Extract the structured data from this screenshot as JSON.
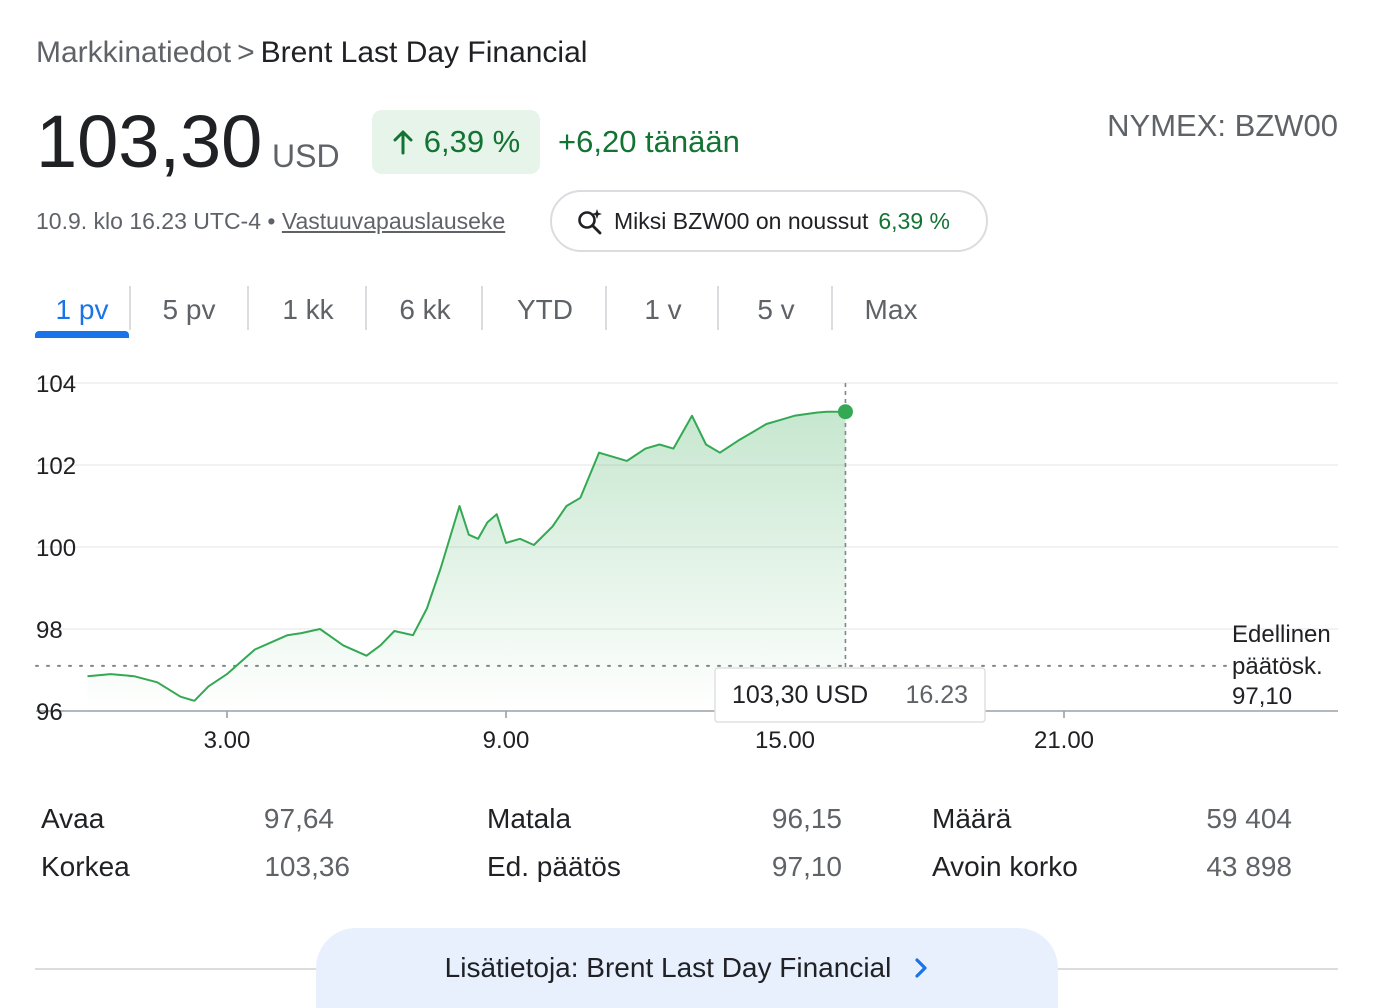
{
  "breadcrumb": {
    "root": "Markkinatiedot",
    "separator": ">",
    "current": "Brent Last Day Financial"
  },
  "quote": {
    "price": "103,30",
    "currency": "USD",
    "change_percent": "6,39 %",
    "change_abs": "+6,20 tänään",
    "exchange": "NYMEX: BZW00",
    "timestamp": "10.9. klo 16.23 UTC-4",
    "bullet": "•",
    "disclaimer": "Vastuuvapauslauseke",
    "positive_color": "#137333"
  },
  "why_button": {
    "label": "Miksi BZW00 on noussut",
    "pct": "6,39 %",
    "icon": "sparkle-search-icon"
  },
  "tabs": [
    {
      "label": "1 pv",
      "active": true
    },
    {
      "label": "5 pv"
    },
    {
      "label": "1 kk"
    },
    {
      "label": "6 kk"
    },
    {
      "label": "YTD"
    },
    {
      "label": "1 v"
    },
    {
      "label": "5 v"
    },
    {
      "label": "Max"
    }
  ],
  "chart_data": {
    "type": "area",
    "y_ticks": [
      "104",
      "102",
      "100",
      "98",
      "96"
    ],
    "ylim": [
      96,
      104
    ],
    "x_ticks": [
      "3.00",
      "9.00",
      "15.00",
      "21.00"
    ],
    "previous_close": {
      "label_line1": "Edellinen",
      "label_line2": "päätösk.",
      "value_label": "97,10",
      "value": 97.1
    },
    "tooltip": {
      "value": "103,30 USD",
      "time": "16.23"
    },
    "line_color": "#34a853",
    "series": [
      {
        "x": [
          0.0,
          0.5,
          1.0,
          1.5,
          2.0,
          2.3,
          2.6,
          3.0,
          3.3,
          3.6,
          4.0,
          4.3,
          4.6,
          5.0,
          5.5,
          6.0,
          6.3,
          6.6,
          7.0,
          7.3,
          7.6,
          8.0,
          8.2,
          8.4,
          8.6,
          8.8,
          9.0,
          9.3,
          9.6,
          10.0,
          10.3,
          10.6,
          11.0,
          11.3,
          11.6,
          12.0,
          12.3,
          12.6,
          13.0,
          13.3,
          13.6,
          14.0,
          14.3,
          14.6,
          14.9,
          15.2,
          15.5,
          15.7,
          15.9,
          16.1,
          16.3
        ],
        "y": [
          96.85,
          96.9,
          96.85,
          96.7,
          96.35,
          96.25,
          96.6,
          96.9,
          97.2,
          97.5,
          97.7,
          97.85,
          97.9,
          98.0,
          97.6,
          97.35,
          97.6,
          97.95,
          97.85,
          98.5,
          99.5,
          101.0,
          100.3,
          100.2,
          100.6,
          100.8,
          100.1,
          100.2,
          100.05,
          100.5,
          101.0,
          101.2,
          102.3,
          102.2,
          102.1,
          102.4,
          102.5,
          102.4,
          103.2,
          102.5,
          102.3,
          102.6,
          102.8,
          103.0,
          103.1,
          103.2,
          103.25,
          103.28,
          103.3,
          103.3,
          103.3
        ]
      }
    ]
  },
  "stats": [
    {
      "label": "Avaa",
      "value": "97,64"
    },
    {
      "label": "Korkea",
      "value": "103,36"
    },
    {
      "label": "Matala",
      "value": "96,15"
    },
    {
      "label": "Ed. päätös",
      "value": "97,10"
    },
    {
      "label": "Määrä",
      "value": "59 404"
    },
    {
      "label": "Avoin korko",
      "value": "43 898"
    }
  ],
  "more_button": {
    "label": "Lisätietoja: Brent Last Day Financial",
    "icon": "chevron-right-icon"
  }
}
